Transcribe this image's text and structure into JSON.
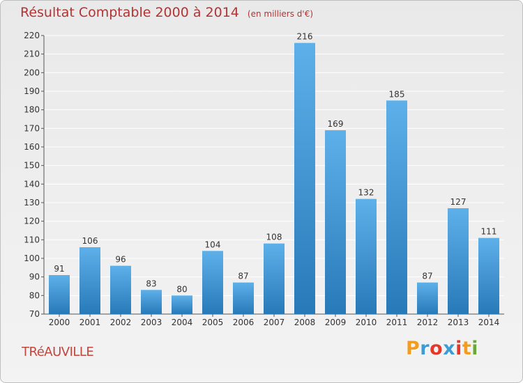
{
  "header": {
    "title": "Résultat Comptable 2000 à 2014",
    "unit": "(en milliers d'€)"
  },
  "footer": {
    "commune": "TRéAUVILLE",
    "logo_letters": [
      "P",
      "r",
      "o",
      "x",
      "i",
      "t",
      "i"
    ],
    "logo_colors": [
      "#f29d1f",
      "#3d9bd7",
      "#e2392a",
      "#3d9bd7",
      "#e2392a",
      "#f29d1f",
      "#6aa838"
    ]
  },
  "colors": {
    "bar_top": "#5eb0ea",
    "bar_bottom": "#2879b8",
    "grid": "#ffffff",
    "title": "#b23434"
  },
  "chart_data": {
    "type": "bar",
    "title": "Résultat Comptable 2000 à 2014",
    "subtitle": "(en milliers d'€)",
    "categories": [
      "2000",
      "2001",
      "2002",
      "2003",
      "2004",
      "2005",
      "2006",
      "2007",
      "2008",
      "2009",
      "2010",
      "2011",
      "2012",
      "2013",
      "2014"
    ],
    "values": [
      91,
      106,
      96,
      83,
      80,
      104,
      87,
      108,
      216,
      169,
      132,
      185,
      87,
      127,
      111
    ],
    "ylim": [
      70,
      220
    ],
    "yticks": [
      70,
      80,
      90,
      100,
      110,
      120,
      130,
      140,
      150,
      160,
      170,
      180,
      190,
      200,
      210,
      220
    ],
    "grid": true,
    "legend": "none"
  }
}
